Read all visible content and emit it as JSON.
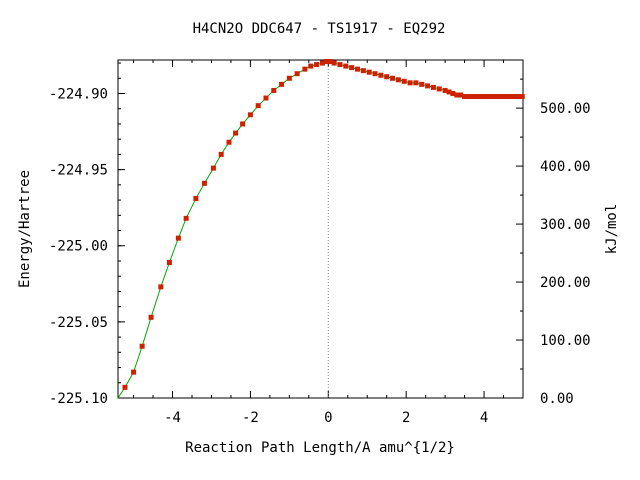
{
  "chart_data": {
    "type": "line",
    "title": "H4CN2O   DDC647 - TS1917 - EQ292",
    "xlabel": "Reaction Path Length/A amu^{1/2}",
    "ylabel": "Energy/Hartree",
    "y2label": "kJ/mol",
    "xlim": [
      -5.4,
      5.0
    ],
    "ylim": [
      -225.1,
      -224.878
    ],
    "y2lim": [
      0.0,
      583.0
    ],
    "xticks": [
      "-4",
      "-2",
      "0",
      "2",
      "4"
    ],
    "yticks": [
      "-225.10",
      "-225.05",
      "-225.00",
      "-224.95",
      "-224.90"
    ],
    "y2ticks": [
      "0.00",
      "100.00",
      "200.00",
      "300.00",
      "400.00",
      "500.00"
    ],
    "grid": false,
    "ts_marker_x": 0.0,
    "series": [
      {
        "line_color": "#00aa00",
        "marker_color": "#cc2200",
        "points": [
          [
            -5.22,
            -225.093
          ],
          [
            -5.0,
            -225.083
          ],
          [
            -4.78,
            -225.066
          ],
          [
            -4.55,
            -225.047
          ],
          [
            -4.3,
            -225.027
          ],
          [
            -4.08,
            -225.011
          ],
          [
            -3.85,
            -224.995
          ],
          [
            -3.65,
            -224.982
          ],
          [
            -3.4,
            -224.969
          ],
          [
            -3.18,
            -224.959
          ],
          [
            -2.95,
            -224.949
          ],
          [
            -2.75,
            -224.94
          ],
          [
            -2.55,
            -224.932
          ],
          [
            -2.38,
            -224.926
          ],
          [
            -2.2,
            -224.92
          ],
          [
            -2.0,
            -224.914
          ],
          [
            -1.8,
            -224.908
          ],
          [
            -1.6,
            -224.903
          ],
          [
            -1.4,
            -224.898
          ],
          [
            -1.2,
            -224.894
          ],
          [
            -1.0,
            -224.89
          ],
          [
            -0.8,
            -224.887
          ],
          [
            -0.6,
            -224.884
          ],
          [
            -0.45,
            -224.882
          ],
          [
            -0.3,
            -224.881
          ],
          [
            -0.15,
            -224.88
          ],
          [
            -0.05,
            -224.879
          ],
          [
            0.05,
            -224.879
          ],
          [
            0.15,
            -224.88
          ],
          [
            0.3,
            -224.881
          ],
          [
            0.45,
            -224.882
          ],
          [
            0.6,
            -224.883
          ],
          [
            0.75,
            -224.884
          ],
          [
            0.9,
            -224.885
          ],
          [
            1.05,
            -224.886
          ],
          [
            1.2,
            -224.887
          ],
          [
            1.35,
            -224.888
          ],
          [
            1.5,
            -224.889
          ],
          [
            1.65,
            -224.89
          ],
          [
            1.8,
            -224.891
          ],
          [
            1.95,
            -224.892
          ],
          [
            2.1,
            -224.893
          ],
          [
            2.25,
            -224.893
          ],
          [
            2.4,
            -224.894
          ],
          [
            2.55,
            -224.895
          ],
          [
            2.7,
            -224.896
          ],
          [
            2.85,
            -224.897
          ],
          [
            3.0,
            -224.898
          ],
          [
            3.1,
            -224.899
          ],
          [
            3.2,
            -224.9
          ],
          [
            3.3,
            -224.901
          ],
          [
            3.4,
            -224.901
          ],
          [
            3.5,
            -224.902
          ],
          [
            3.6,
            -224.902
          ],
          [
            3.7,
            -224.902
          ],
          [
            3.8,
            -224.902
          ],
          [
            3.9,
            -224.902
          ],
          [
            4.0,
            -224.902
          ],
          [
            4.1,
            -224.902
          ],
          [
            4.2,
            -224.902
          ],
          [
            4.3,
            -224.902
          ],
          [
            4.4,
            -224.902
          ],
          [
            4.5,
            -224.902
          ],
          [
            4.6,
            -224.902
          ],
          [
            4.7,
            -224.902
          ],
          [
            4.8,
            -224.902
          ],
          [
            4.9,
            -224.902
          ],
          [
            4.98,
            -224.902
          ]
        ]
      }
    ]
  }
}
